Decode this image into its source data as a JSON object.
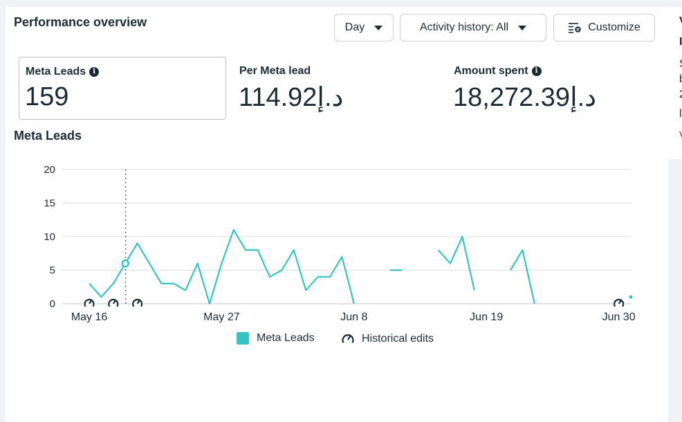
{
  "header": {
    "title": "Performance overview",
    "day_label": "Day",
    "activity_label": "Activity history: All",
    "customize_label": "Customize"
  },
  "metrics": [
    {
      "label": "Meta Leads",
      "value": "159",
      "info": true
    },
    {
      "label": "Per Meta lead",
      "value": "114.92د.إ",
      "info": false
    },
    {
      "label": "Amount spent",
      "value": "18,272.39د.إ",
      "info": true
    }
  ],
  "side_panel": {
    "letters": [
      "V",
      "I",
      "S",
      "b",
      "2",
      "l",
      "V"
    ]
  },
  "chart_data": {
    "type": "line",
    "title": "Meta Leads",
    "x_ticks": [
      "May 16",
      "May 27",
      "Jun 8",
      "Jun 19",
      "Jun 30"
    ],
    "y_ticks": [
      0,
      5,
      10,
      15,
      20
    ],
    "ylim": [
      0,
      20
    ],
    "series": [
      {
        "name": "Meta Leads",
        "color": "#35c4c4",
        "values": [
          3,
          1,
          3,
          6,
          9,
          6,
          3,
          3,
          2,
          6,
          0,
          6,
          11,
          8,
          8,
          4,
          5,
          8,
          2,
          4,
          4,
          7,
          0,
          null,
          null,
          5,
          5,
          null,
          null,
          8,
          6,
          10,
          2,
          null,
          null,
          5,
          8,
          0,
          null,
          null,
          null,
          null,
          null,
          null,
          null,
          1
        ]
      }
    ],
    "hover_index": 3,
    "historical_edit_indices": [
      0,
      2,
      4,
      44
    ],
    "grid": true,
    "legend": [
      "Meta Leads",
      "Historical edits"
    ]
  }
}
